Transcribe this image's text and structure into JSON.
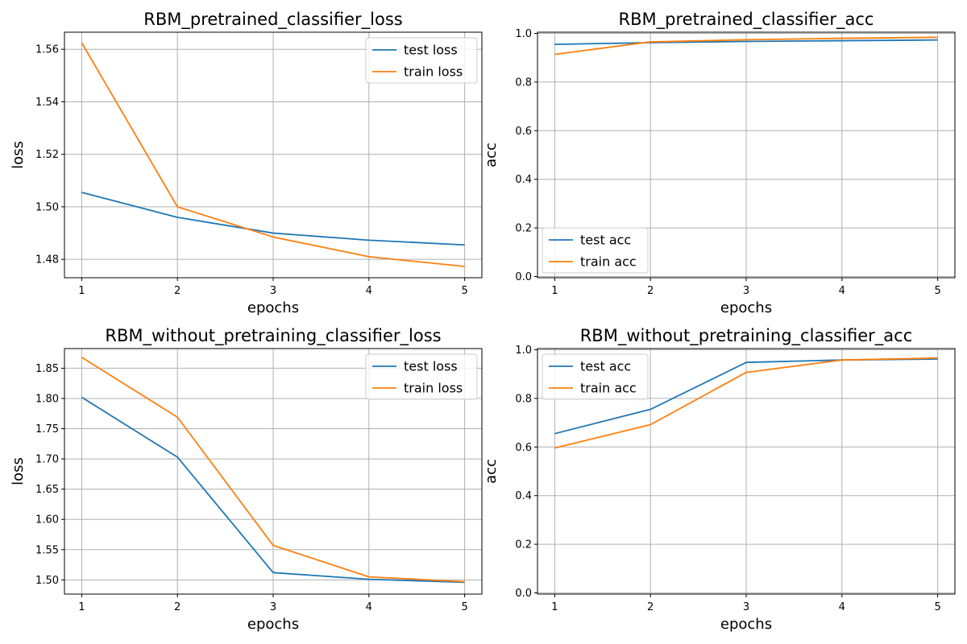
{
  "chart_data": [
    {
      "type": "line",
      "title": "RBM_pretrained_classifier_loss",
      "xlabel": "epochs",
      "ylabel": "loss",
      "x": [
        1,
        2,
        3,
        4,
        5
      ],
      "xticks": [
        "1",
        "2",
        "3",
        "4",
        "5"
      ],
      "yticks": [
        "1.48",
        "1.50",
        "1.52",
        "1.54",
        "1.56"
      ],
      "ylim": [
        1.473,
        1.5665
      ],
      "grid": true,
      "legend_position": "upper-right",
      "series": [
        {
          "name": "test loss",
          "color": "#1f77b4",
          "values": [
            1.5055,
            1.496,
            1.49,
            1.4873,
            1.4855
          ]
        },
        {
          "name": "train loss",
          "color": "#ff7f0e",
          "values": [
            1.5625,
            1.5,
            1.4885,
            1.481,
            1.4773
          ]
        }
      ]
    },
    {
      "type": "line",
      "title": "RBM_pretrained_classifier_acc",
      "xlabel": "epochs",
      "ylabel": "acc",
      "x": [
        1,
        2,
        3,
        4,
        5
      ],
      "xticks": [
        "1",
        "2",
        "3",
        "4",
        "5"
      ],
      "yticks": [
        "0.0",
        "0.2",
        "0.4",
        "0.6",
        "0.8",
        "1.0"
      ],
      "ylim": [
        -0.005,
        1.005
      ],
      "grid": true,
      "legend_position": "lower-left",
      "series": [
        {
          "name": "test acc",
          "color": "#1f77b4",
          "values": [
            0.955,
            0.962,
            0.967,
            0.97,
            0.973
          ]
        },
        {
          "name": "train acc",
          "color": "#ff7f0e",
          "values": [
            0.914,
            0.965,
            0.974,
            0.98,
            0.984
          ]
        }
      ]
    },
    {
      "type": "line",
      "title": "RBM_without_pretraining_classifier_loss",
      "xlabel": "epochs",
      "ylabel": "loss",
      "x": [
        1,
        2,
        3,
        4,
        5
      ],
      "xticks": [
        "1",
        "2",
        "3",
        "4",
        "5"
      ],
      "yticks": [
        "1.50",
        "1.55",
        "1.60",
        "1.65",
        "1.70",
        "1.75",
        "1.80",
        "1.85"
      ],
      "ylim": [
        1.4765,
        1.8825
      ],
      "grid": true,
      "legend_position": "upper-right",
      "series": [
        {
          "name": "test loss",
          "color": "#1f77b4",
          "values": [
            1.802,
            1.703,
            1.512,
            1.501,
            1.496
          ]
        },
        {
          "name": "train loss",
          "color": "#ff7f0e",
          "values": [
            1.868,
            1.769,
            1.557,
            1.505,
            1.497
          ]
        }
      ]
    },
    {
      "type": "line",
      "title": "RBM_without_pretraining_classifier_acc",
      "xlabel": "epochs",
      "ylabel": "acc",
      "x": [
        1,
        2,
        3,
        4,
        5
      ],
      "xticks": [
        "1",
        "2",
        "3",
        "4",
        "5"
      ],
      "yticks": [
        "0.0",
        "0.2",
        "0.4",
        "0.6",
        "0.8",
        "1.0"
      ],
      "ylim": [
        -0.005,
        1.005
      ],
      "grid": true,
      "legend_position": "upper-left",
      "series": [
        {
          "name": "test acc",
          "color": "#1f77b4",
          "values": [
            0.655,
            0.755,
            0.948,
            0.958,
            0.962
          ]
        },
        {
          "name": "train acc",
          "color": "#ff7f0e",
          "values": [
            0.596,
            0.692,
            0.907,
            0.958,
            0.966
          ]
        }
      ]
    }
  ]
}
